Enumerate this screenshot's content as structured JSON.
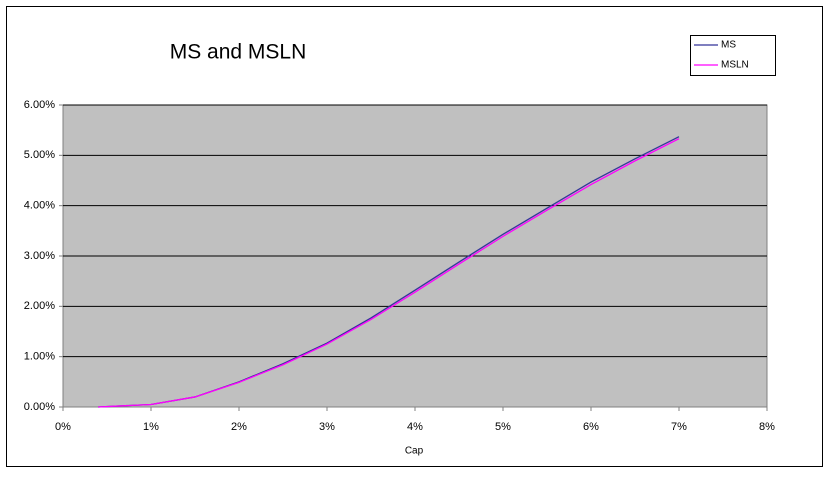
{
  "chart_data": {
    "type": "line",
    "title": "MS and MSLN",
    "x_label": "Cap",
    "x": [
      0.4,
      1,
      1.5,
      2,
      2.5,
      3,
      3.5,
      4,
      4.5,
      5,
      5.5,
      6,
      6.5,
      7
    ],
    "series": [
      {
        "name": "MS",
        "color": "#333399",
        "values": [
          0,
          0.05,
          0.2,
          0.5,
          0.86,
          1.27,
          1.77,
          2.32,
          2.88,
          3.43,
          3.95,
          4.47,
          4.93,
          5.37
        ]
      },
      {
        "name": "MSLN",
        "color": "#ff00ff",
        "values": [
          0,
          0.05,
          0.2,
          0.49,
          0.84,
          1.25,
          1.74,
          2.28,
          2.84,
          3.39,
          3.91,
          4.42,
          4.89,
          5.33
        ]
      }
    ],
    "xlim": [
      0,
      8
    ],
    "xticks": [
      {
        "value": 0,
        "label": "0%"
      },
      {
        "value": 1,
        "label": "1%"
      },
      {
        "value": 2,
        "label": "2%"
      },
      {
        "value": 3,
        "label": "3%"
      },
      {
        "value": 4,
        "label": "4%"
      },
      {
        "value": 5,
        "label": "5%"
      },
      {
        "value": 6,
        "label": "6%"
      },
      {
        "value": 7,
        "label": "7%"
      },
      {
        "value": 8,
        "label": "8%"
      }
    ],
    "ylim": [
      0,
      6
    ],
    "yticks": [
      {
        "value": 0,
        "label": "0.00%"
      },
      {
        "value": 1,
        "label": "1.00%"
      },
      {
        "value": 2,
        "label": "2.00%"
      },
      {
        "value": 3,
        "label": "3.00%"
      },
      {
        "value": 4,
        "label": "4.00%"
      },
      {
        "value": 5,
        "label": "5.00%"
      },
      {
        "value": 6,
        "label": "6.00%"
      }
    ],
    "grid": true,
    "legend": "top-right",
    "plot_background": "#c0c0c0"
  }
}
